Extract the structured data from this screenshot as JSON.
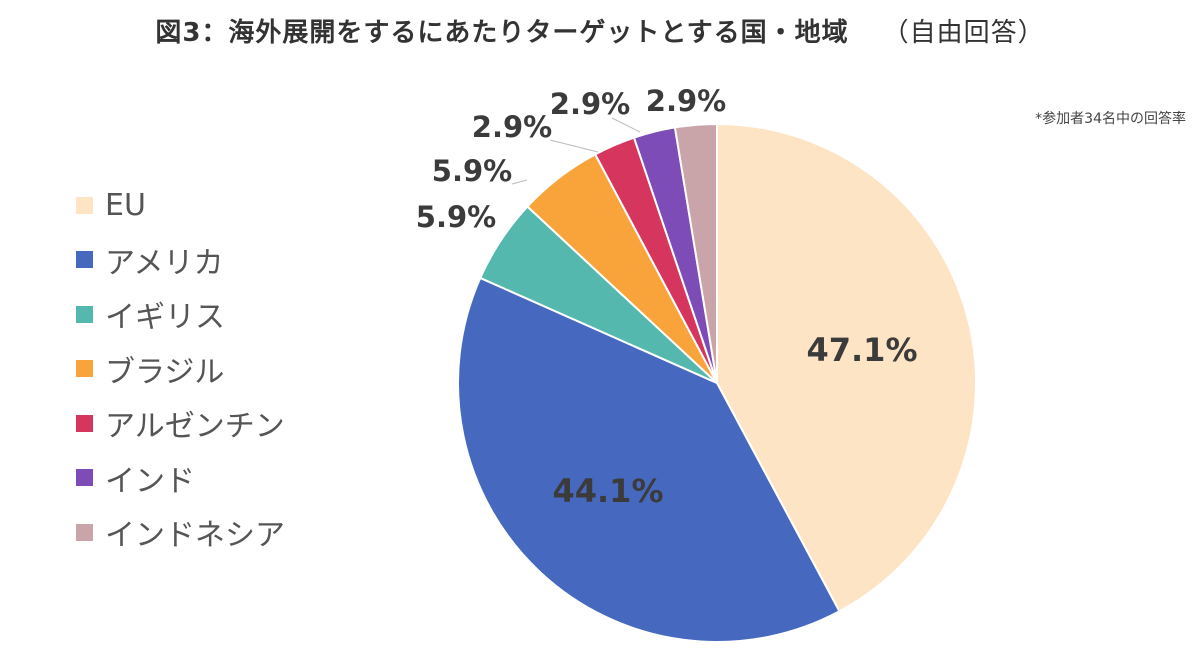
{
  "title": "図3：海外展開をするにあたりターゲットとする国・地域",
  "subtitle": "（自由回答）",
  "note": "*参加者34名中の回答率",
  "chart_data": {
    "type": "pie",
    "title": "図3：海外展開をするにあたりターゲットとする国・地域",
    "subtitle": "（自由回答）",
    "legend_position": "left",
    "slices": [
      {
        "name": "EU",
        "value": 47.1,
        "label": "47.1%",
        "color": "#FCE4C4"
      },
      {
        "name": "アメリカ",
        "value": 44.1,
        "label": "44.1%",
        "color": "#4669BF"
      },
      {
        "name": "イギリス",
        "value": 5.9,
        "label": "5.9%",
        "color": "#55B8AE"
      },
      {
        "name": "ブラジル",
        "value": 5.9,
        "label": "5.9%",
        "color": "#F9A43A"
      },
      {
        "name": "アルゼンチン",
        "value": 2.9,
        "label": "2.9%",
        "color": "#D6365E"
      },
      {
        "name": "インド",
        "value": 2.9,
        "label": "2.9%",
        "color": "#7D4CB6"
      },
      {
        "name": "インドネシア",
        "value": 2.9,
        "label": "2.9%",
        "color": "#C9A4A8"
      }
    ]
  }
}
